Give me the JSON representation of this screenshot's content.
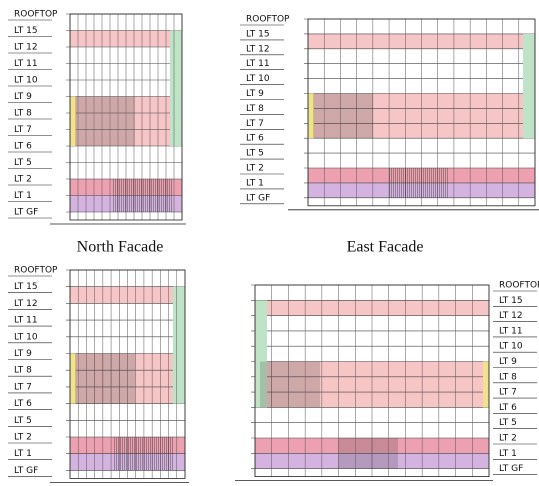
{
  "panels": [
    {
      "caption": "North Facade",
      "levels": [
        "ROOFTOP",
        "LT 15",
        "LT 12",
        "LT 11",
        "LT 10",
        "LT 9",
        "LT 8",
        "LT 7",
        "LT 6",
        "LT 5",
        "LT 2",
        "LT 1",
        "LT GF"
      ]
    },
    {
      "caption": "East Facade",
      "levels": [
        "ROOFTOP",
        "LT 15",
        "LT 12",
        "LT 11",
        "LT 10",
        "LT 9",
        "LT 8",
        "LT 7",
        "LT 6",
        "LT 5",
        "LT 2",
        "LT 1",
        "LT GF"
      ]
    },
    {
      "levels": [
        "ROOFTOP",
        "LT 15",
        "LT 12",
        "LT 11",
        "LT 10",
        "LT 9",
        "LT 8",
        "LT 7",
        "LT 6",
        "LT 5",
        "LT 2",
        "LT 1",
        "LT GF"
      ]
    },
    {
      "levels": [
        "ROOFTOP",
        "LT 15",
        "LT 12",
        "LT 11",
        "LT 10",
        "LT 9",
        "LT 8",
        "LT 7",
        "LT 6",
        "LT 5",
        "LT 2",
        "LT 1",
        "LT GF"
      ]
    }
  ]
}
